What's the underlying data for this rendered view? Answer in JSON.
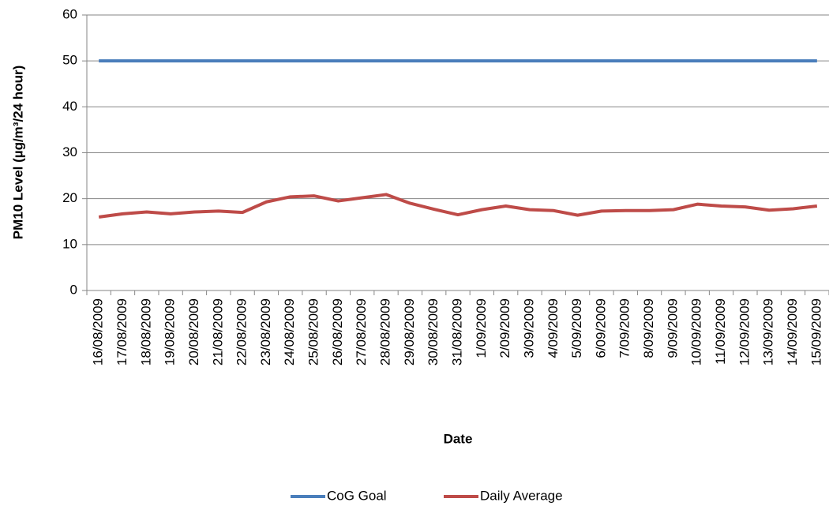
{
  "chart_data": {
    "type": "line",
    "x_label": "Date",
    "y_label": "PM10 Level (µg/m³/24 hour)",
    "categories": [
      "16/08/2009",
      "17/08/2009",
      "18/08/2009",
      "19/08/2009",
      "20/08/2009",
      "21/08/2009",
      "22/08/2009",
      "23/08/2009",
      "24/08/2009",
      "25/08/2009",
      "26/08/2009",
      "27/08/2009",
      "28/08/2009",
      "29/08/2009",
      "30/08/2009",
      "31/08/2009",
      "1/09/2009",
      "2/09/2009",
      "3/09/2009",
      "4/09/2009",
      "5/09/2009",
      "6/09/2009",
      "7/09/2009",
      "8/09/2009",
      "9/09/2009",
      "10/09/2009",
      "11/09/2009",
      "12/09/2009",
      "13/09/2009",
      "14/09/2009",
      "15/09/2009"
    ],
    "series": [
      {
        "name": "CoG Goal",
        "color": "#4a7ebb",
        "values": [
          50,
          50,
          50,
          50,
          50,
          50,
          50,
          50,
          50,
          50,
          50,
          50,
          50,
          50,
          50,
          50,
          50,
          50,
          50,
          50,
          50,
          50,
          50,
          50,
          50,
          50,
          50,
          50,
          50,
          50,
          50
        ]
      },
      {
        "name": "Daily Average",
        "color": "#be4b48",
        "values": [
          16.0,
          16.7,
          17.1,
          16.7,
          17.1,
          17.3,
          17.0,
          19.3,
          20.4,
          20.6,
          19.5,
          20.2,
          20.9,
          19.0,
          17.7,
          16.5,
          17.6,
          18.4,
          17.6,
          17.4,
          16.4,
          17.3,
          17.4,
          17.4,
          17.6,
          18.8,
          18.4,
          18.2,
          17.5,
          17.8,
          18.4
        ]
      }
    ],
    "ylim": [
      0,
      60
    ],
    "yticks": [
      0,
      10,
      20,
      30,
      40,
      50,
      60
    ],
    "grid": true,
    "legend": "bottom"
  }
}
